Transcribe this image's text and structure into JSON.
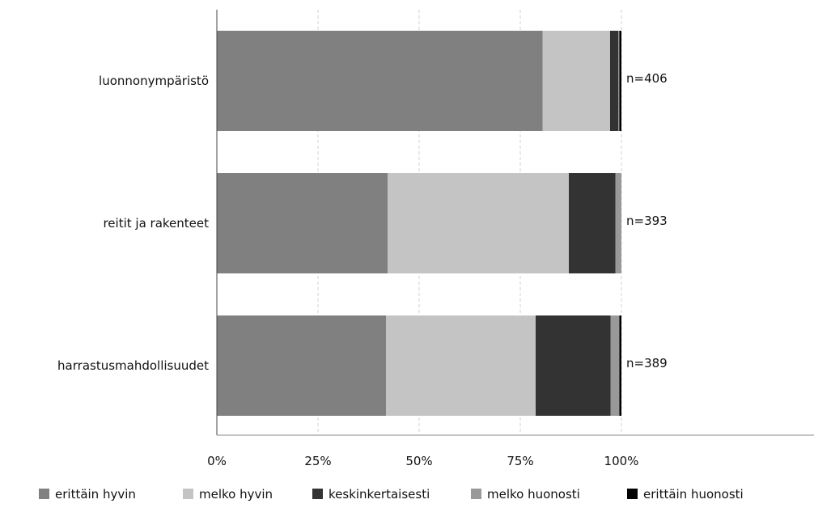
{
  "chart_data": {
    "type": "bar",
    "orientation": "horizontal",
    "stacked": true,
    "normalized_percent": true,
    "categories": [
      "luonnonympäristö",
      "reitit ja rakenteet",
      "harrastusmahdollisuudet"
    ],
    "n_labels": [
      "n=406",
      "n=393",
      "n=389"
    ],
    "series": [
      {
        "name": "erittäin hyvin",
        "color": "#808080",
        "values": [
          80.5,
          42.2,
          41.8
        ]
      },
      {
        "name": "melko hyvin",
        "color": "#c4c4c4",
        "values": [
          16.7,
          44.8,
          37.0
        ]
      },
      {
        "name": "keskinkertaisesti",
        "color": "#333333",
        "values": [
          2.0,
          11.5,
          18.5
        ]
      },
      {
        "name": "melko huonosti",
        "color": "#999999",
        "values": [
          0.3,
          1.5,
          2.2
        ]
      },
      {
        "name": "erittäin huonosti",
        "color": "#000000",
        "values": [
          0.5,
          0.0,
          0.5
        ]
      }
    ],
    "x_ticks": [
      "0%",
      "25%",
      "50%",
      "75%",
      "100%"
    ],
    "xlim": [
      0,
      100
    ],
    "grid": "vertical dashed",
    "legend_position": "bottom"
  }
}
